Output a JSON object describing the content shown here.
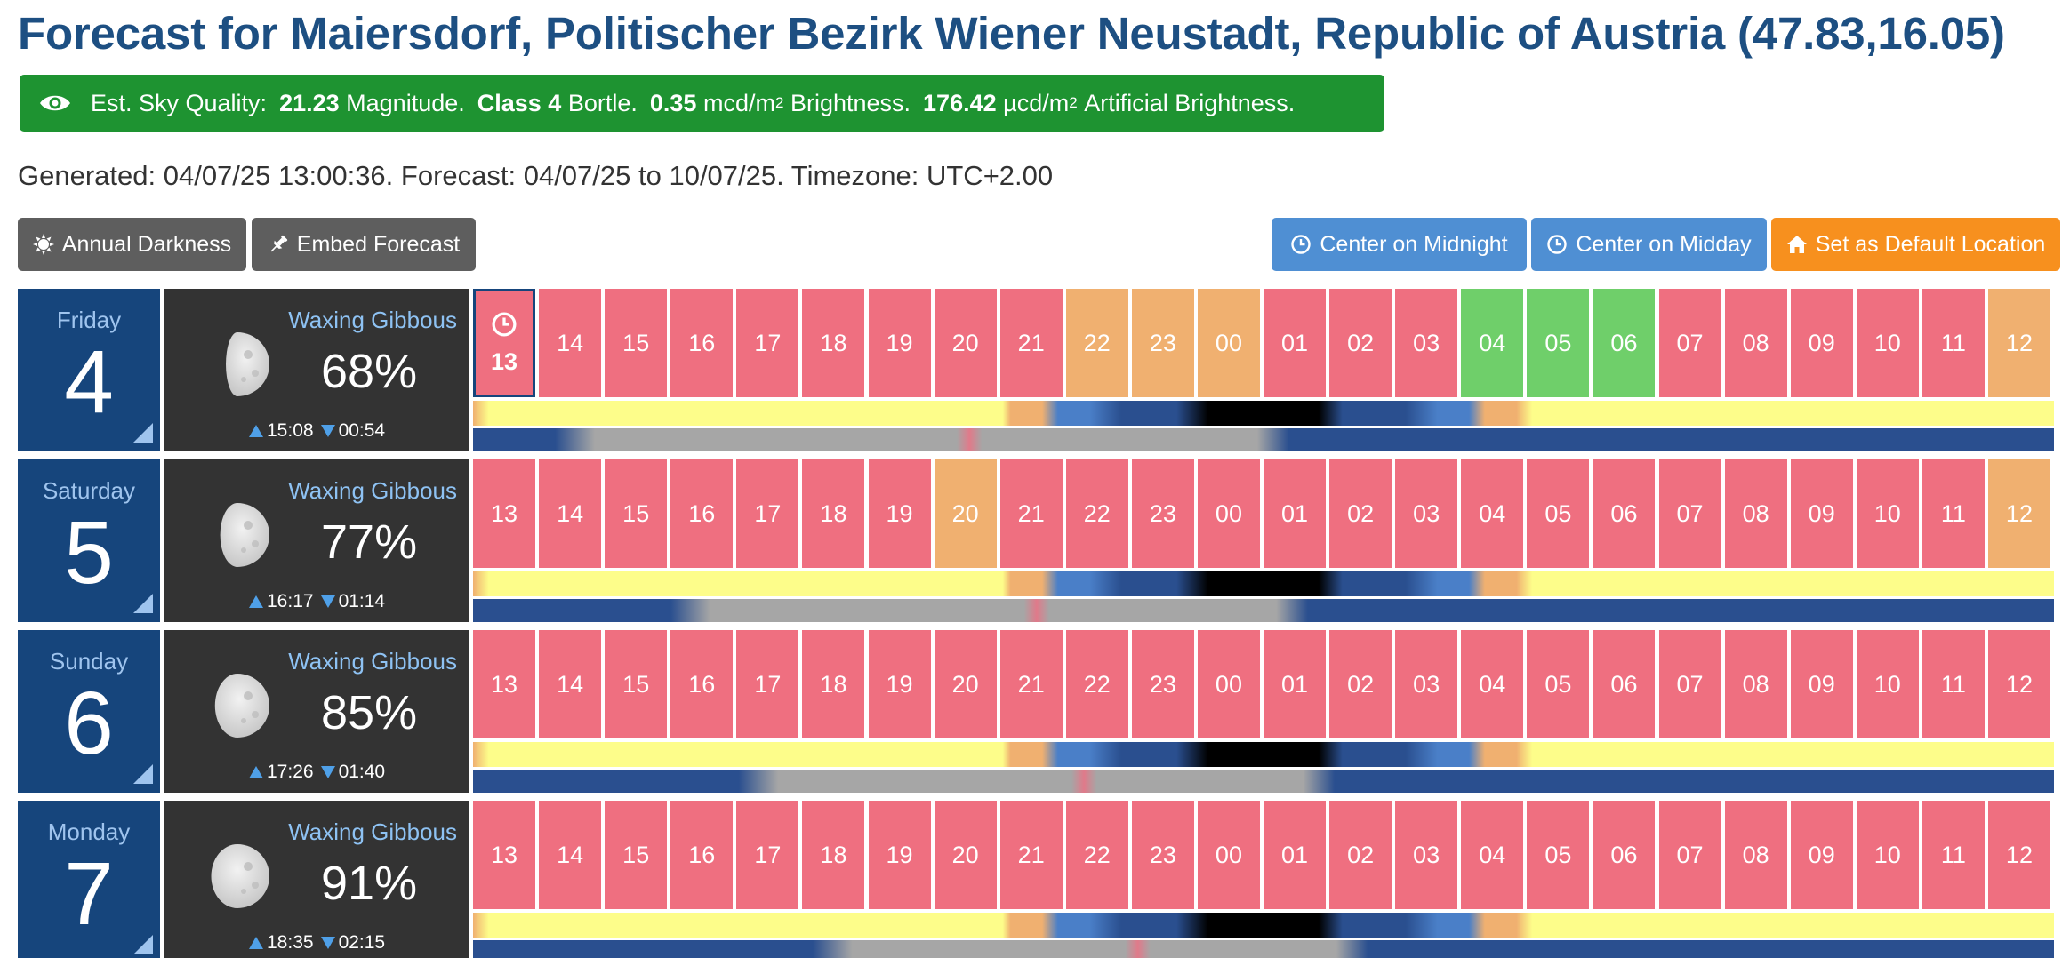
{
  "title": "Forecast for Maiersdorf, Politischer Bezirk Wiener Neustadt, Republic of Austria (47.83,16.05)",
  "sky_quality": {
    "label": "Est. Sky Quality:",
    "magnitude_value": "21.23",
    "magnitude_unit": "Magnitude.",
    "class_value": "Class 4",
    "class_unit": "Bortle.",
    "brightness_value": "0.35",
    "brightness_unit": "mcd/m",
    "brightness_label": "Brightness.",
    "artificial_value": "176.42",
    "artificial_unit": "µcd/m",
    "artificial_label": "Artificial Brightness.",
    "superscript": "2",
    "color": "#1e9331"
  },
  "generated": "Generated: 04/07/25 13:00:36. Forecast: 04/07/25 to 10/07/25. Timezone: UTC+2.00",
  "toolbar": {
    "annual_darkness": "Annual Darkness",
    "embed_forecast": "Embed Forecast",
    "center_midnight": "Center on Midnight",
    "center_midday": "Center on Midday",
    "set_default": "Set as Default Location"
  },
  "colors": {
    "bad": "#ef6f80",
    "fair": "#f0b070",
    "good": "#6fcf6a",
    "date_bg": "#16457c",
    "moon_bg": "#333333",
    "sun_day": "#fdfd8a",
    "civil": "#f0b070",
    "nautical": "#4a7fc8",
    "astro": "#2a4f8f",
    "night": "#000000",
    "moon_down": "#2a4f8f",
    "moon_up": "#a6a6a6"
  },
  "days": [
    {
      "weekday": "Friday",
      "day": "4",
      "phase": "Waxing Gibbous",
      "illumination": "68%",
      "moonrise": "15:08",
      "moonset": "00:54",
      "hours": [
        "13",
        "14",
        "15",
        "16",
        "17",
        "18",
        "19",
        "20",
        "21",
        "22",
        "23",
        "00",
        "01",
        "02",
        "03",
        "04",
        "05",
        "06",
        "07",
        "08",
        "09",
        "10",
        "11",
        "12"
      ],
      "conditions": [
        "bad",
        "bad",
        "bad",
        "bad",
        "bad",
        "bad",
        "bad",
        "bad",
        "bad",
        "fair",
        "fair",
        "fair",
        "bad",
        "bad",
        "bad",
        "good",
        "good",
        "good",
        "bad",
        "bad",
        "bad",
        "bad",
        "bad",
        "fair"
      ],
      "current_hour_index": 0,
      "moon_up_fraction": [
        0.062,
        0.506
      ]
    },
    {
      "weekday": "Saturday",
      "day": "5",
      "phase": "Waxing Gibbous",
      "illumination": "77%",
      "moonrise": "16:17",
      "moonset": "01:14",
      "hours": [
        "13",
        "14",
        "15",
        "16",
        "17",
        "18",
        "19",
        "20",
        "21",
        "22",
        "23",
        "00",
        "01",
        "02",
        "03",
        "04",
        "05",
        "06",
        "07",
        "08",
        "09",
        "10",
        "11",
        "12"
      ],
      "conditions": [
        "bad",
        "bad",
        "bad",
        "bad",
        "bad",
        "bad",
        "bad",
        "fair",
        "bad",
        "bad",
        "bad",
        "bad",
        "bad",
        "bad",
        "bad",
        "bad",
        "bad",
        "bad",
        "bad",
        "bad",
        "bad",
        "bad",
        "bad",
        "fair"
      ],
      "current_hour_index": -1,
      "moon_up_fraction": [
        0.135,
        0.518
      ]
    },
    {
      "weekday": "Sunday",
      "day": "6",
      "phase": "Waxing Gibbous",
      "illumination": "85%",
      "moonrise": "17:26",
      "moonset": "01:40",
      "hours": [
        "13",
        "14",
        "15",
        "16",
        "17",
        "18",
        "19",
        "20",
        "21",
        "22",
        "23",
        "00",
        "01",
        "02",
        "03",
        "04",
        "05",
        "06",
        "07",
        "08",
        "09",
        "10",
        "11",
        "12"
      ],
      "conditions": [
        "bad",
        "bad",
        "bad",
        "bad",
        "bad",
        "bad",
        "bad",
        "bad",
        "bad",
        "bad",
        "bad",
        "bad",
        "bad",
        "bad",
        "bad",
        "bad",
        "bad",
        "bad",
        "bad",
        "bad",
        "bad",
        "bad",
        "bad",
        "bad"
      ],
      "current_hour_index": -1,
      "moon_up_fraction": [
        0.178,
        0.535
      ]
    },
    {
      "weekday": "Monday",
      "day": "7",
      "phase": "Waxing Gibbous",
      "illumination": "91%",
      "moonrise": "18:35",
      "moonset": "02:15",
      "hours": [
        "13",
        "14",
        "15",
        "16",
        "17",
        "18",
        "19",
        "20",
        "21",
        "22",
        "23",
        "00",
        "01",
        "02",
        "03",
        "04",
        "05",
        "06",
        "07",
        "08",
        "09",
        "10",
        "11",
        "12"
      ],
      "conditions": [
        "bad",
        "bad",
        "bad",
        "bad",
        "bad",
        "bad",
        "bad",
        "bad",
        "bad",
        "bad",
        "bad",
        "bad",
        "bad",
        "bad",
        "bad",
        "bad",
        "bad",
        "bad",
        "bad",
        "bad",
        "bad",
        "bad",
        "bad",
        "bad"
      ],
      "current_hour_index": -1,
      "moon_up_fraction": [
        0.225,
        0.556
      ]
    }
  ]
}
